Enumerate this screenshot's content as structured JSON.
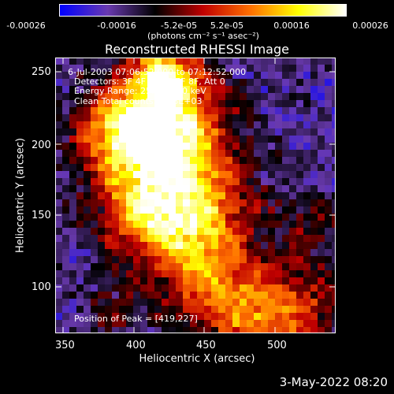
{
  "colorbar": {
    "ticks": [
      "-0.00026",
      "-0.00016",
      "-5.2e-05",
      "5.2e-05",
      "0.00016",
      "0.00026"
    ],
    "units": "(photons cm⁻² s⁻¹ asec⁻²)",
    "colors": [
      "#0000ff",
      "#6a3ab0",
      "#000000",
      "#c00000",
      "#ff7000",
      "#ffff00",
      "#ffffff"
    ]
  },
  "title": "Reconstructed RHESSI Image",
  "annotations": {
    "time": "6-Jul-2003 07:06:52.000 to 07:12:52.000",
    "detectors": "Detectors: 3F 4F 5F 6F 7F 8F, Att 0",
    "energy": "Energy Range: 25.0 - 50.0 keV",
    "method": "Clean     Total counts: 4.33E+03",
    "peak": "Position of Peak = [419,227]"
  },
  "axes": {
    "xlabel": "Heliocentric X (arcsec)",
    "ylabel": "Heliocentric Y (arcsec)",
    "xticks": [
      "350",
      "400",
      "450",
      "500"
    ],
    "yticks": [
      "250",
      "200",
      "150",
      "100"
    ]
  },
  "footer": "3-May-2022 08:20"
}
